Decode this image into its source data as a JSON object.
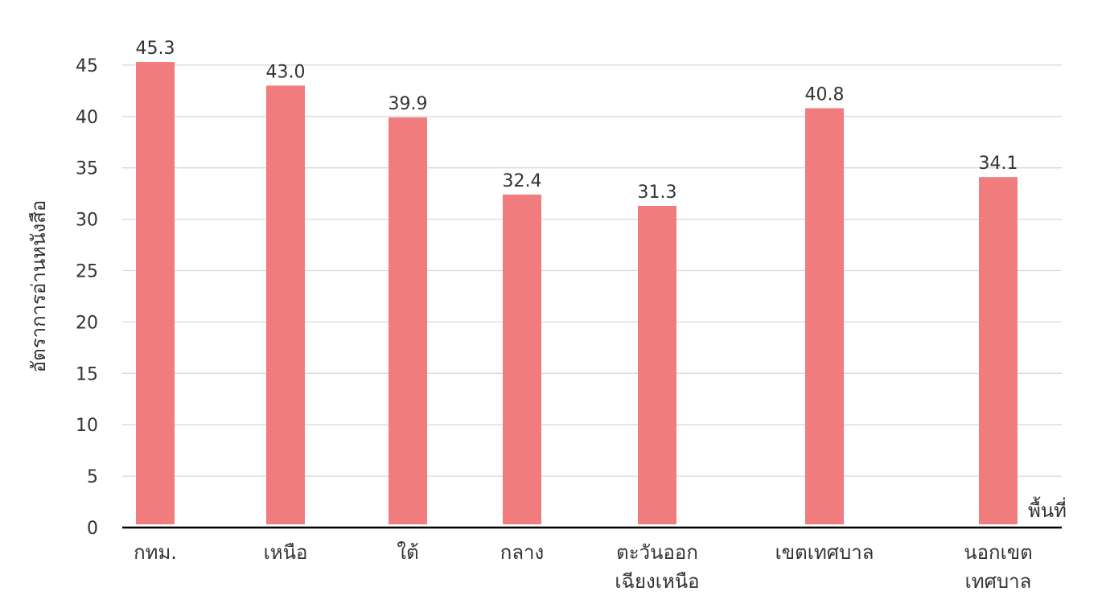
{
  "chart_data": {
    "type": "bar",
    "title": "",
    "xlabel": "พื้นที่",
    "ylabel": "อัตราการอ่านหนังสือ",
    "categories": [
      [
        "กทม."
      ],
      [
        "เหนือ"
      ],
      [
        "ใต้"
      ],
      [
        "กลาง"
      ],
      [
        "ตะวันออก",
        "เฉียงเหนือ"
      ],
      [
        "เขตเทศบาล"
      ],
      [
        "นอกเขต",
        "เทศบาล"
      ]
    ],
    "values": [
      45.3,
      43.0,
      39.9,
      32.4,
      31.3,
      40.8,
      34.1
    ],
    "value_labels": [
      "45.3",
      "43.0",
      "39.9",
      "32.4",
      "31.3",
      "40.8",
      "34.1"
    ],
    "yticks": [
      "0",
      "5",
      "10",
      "15",
      "20",
      "25",
      "30",
      "35",
      "40",
      "45"
    ],
    "ylim": [
      0,
      45
    ],
    "grid": true,
    "legend": "none",
    "bar_color": "#F07C7D",
    "grid_color": "#D9D9D9",
    "axis_color": "#000000"
  }
}
